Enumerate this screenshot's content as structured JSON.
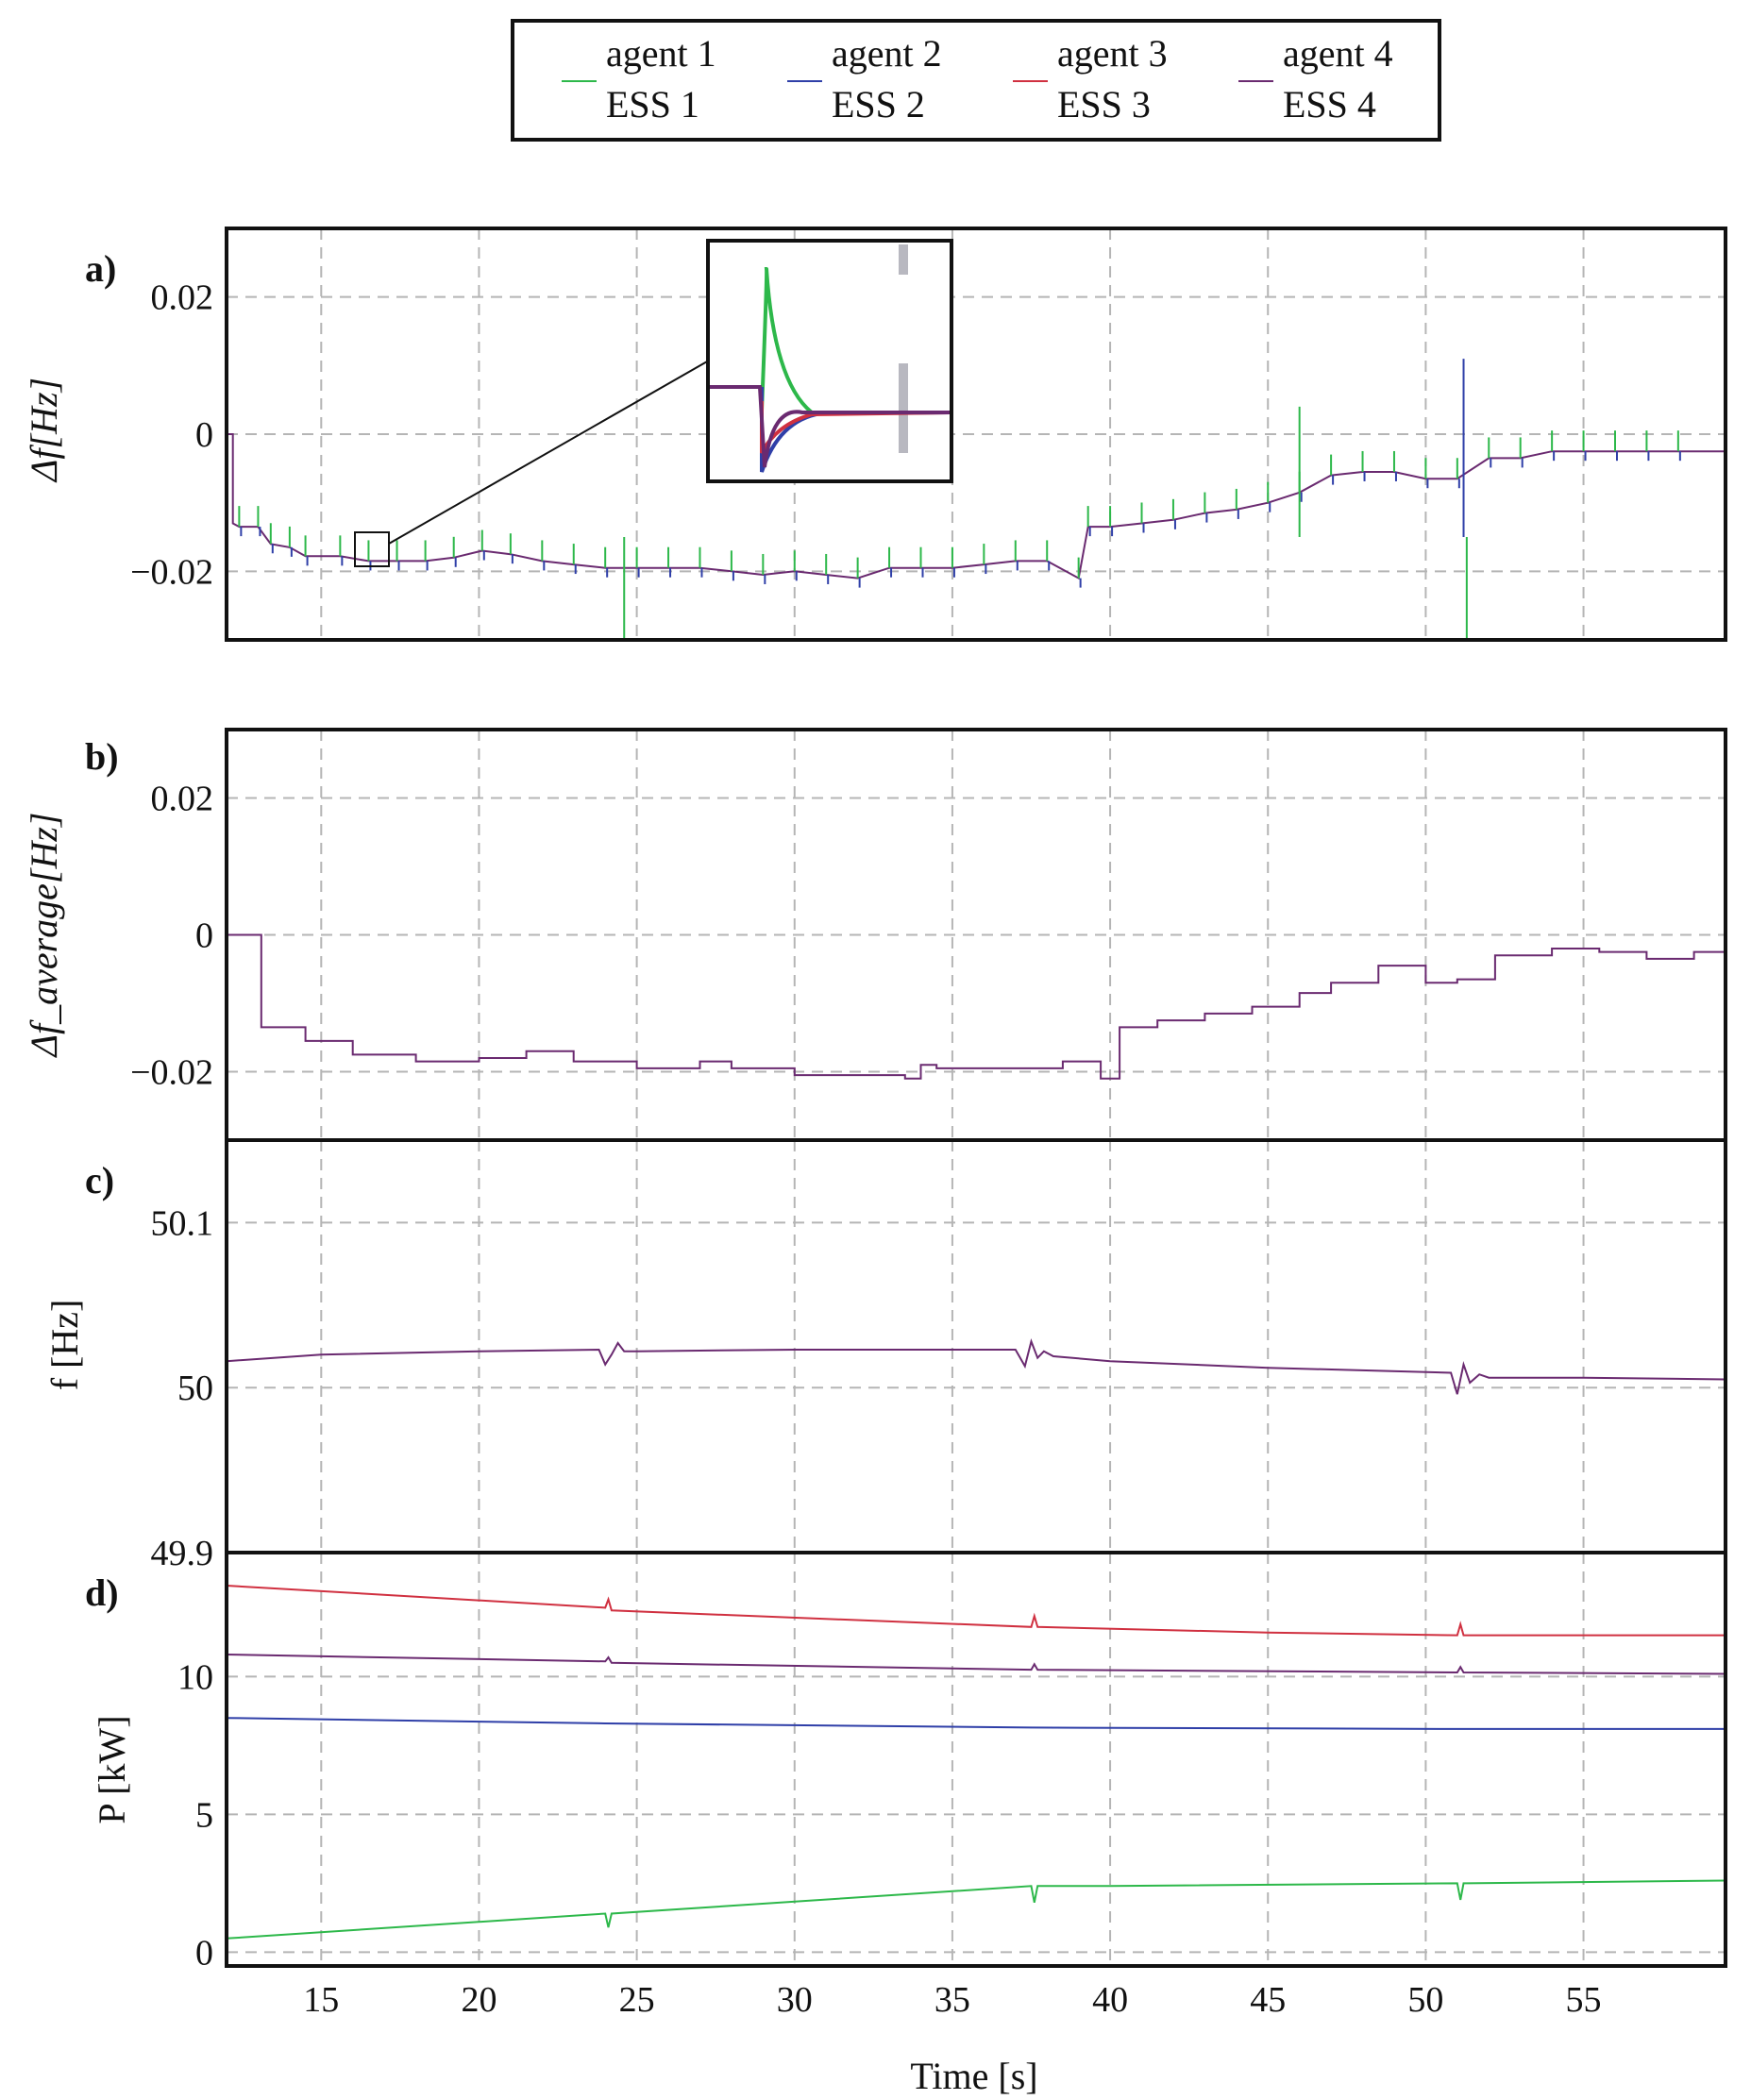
{
  "legend": {
    "entries": [
      {
        "top": "agent 1",
        "bottom": "ESS 1",
        "color": "#2db84a"
      },
      {
        "top": "agent 2",
        "bottom": "ESS 2",
        "color": "#2f3fa8"
      },
      {
        "top": "agent 3",
        "bottom": "ESS 3",
        "color": "#d03040"
      },
      {
        "top": "agent 4",
        "bottom": "ESS 4",
        "color": "#6a2a70"
      }
    ]
  },
  "colors": {
    "agent1": "#2db84a",
    "agent2": "#2f3fa8",
    "agent3": "#d03040",
    "agent4": "#6a2a70",
    "grid": "#b5b5b5",
    "axis": "#111111"
  },
  "xaxis": {
    "label": "Time [s]",
    "range": [
      12,
      59.5
    ],
    "ticks": [
      15,
      20,
      25,
      30,
      35,
      40,
      45,
      50,
      55
    ],
    "tick_labels": [
      "15",
      "20",
      "25",
      "30",
      "35",
      "40",
      "45",
      "50",
      "55"
    ]
  },
  "chart_data": [
    {
      "id": "a",
      "panel_label": "a)",
      "type": "line",
      "ylabel": "Δf[Hz]",
      "ylim": [
        -0.03,
        0.03
      ],
      "yticks": [
        -0.02,
        0,
        0.02
      ],
      "ytick_labels": [
        "−0.02",
        "0",
        "0.02"
      ],
      "series": [
        {
          "name": "agent 4",
          "x": [
            12,
            12.2,
            12.2,
            12.4,
            13.0,
            13.4,
            14.0,
            14.5,
            15.6,
            16.5,
            17.4,
            18.3,
            19.2,
            20.1,
            21.0,
            22.0,
            23.0,
            24.0,
            25.0,
            26.0,
            27.0,
            28.0,
            29.0,
            30.0,
            31.0,
            32.0,
            33.0,
            34.0,
            35.0,
            36.0,
            37.0,
            38.0,
            39.0,
            39.3,
            40.0,
            41.0,
            42.0,
            43.0,
            44.0,
            45.0,
            46.0,
            47.0,
            48.0,
            49.0,
            50.0,
            51.0,
            52.0,
            53.0,
            54.0,
            55.0,
            56.0,
            57.0,
            58.0,
            59.5
          ],
          "y": [
            0,
            0,
            -0.013,
            -0.0135,
            -0.0135,
            -0.016,
            -0.0165,
            -0.0178,
            -0.0178,
            -0.0185,
            -0.0185,
            -0.0185,
            -0.018,
            -0.017,
            -0.0175,
            -0.0185,
            -0.019,
            -0.0195,
            -0.0195,
            -0.0195,
            -0.0195,
            -0.02,
            -0.0205,
            -0.02,
            -0.0205,
            -0.021,
            -0.0195,
            -0.0195,
            -0.0195,
            -0.019,
            -0.0185,
            -0.0185,
            -0.021,
            -0.0135,
            -0.0135,
            -0.013,
            -0.0125,
            -0.0115,
            -0.011,
            -0.01,
            -0.0085,
            -0.006,
            -0.0055,
            -0.0055,
            -0.0065,
            -0.0065,
            -0.0035,
            -0.0035,
            -0.0025,
            -0.0025,
            -0.0025,
            -0.0025,
            -0.0025,
            -0.0025
          ]
        }
      ],
      "spikes": [
        {
          "x": 24.6,
          "y": -0.03,
          "series": "agent 1"
        },
        {
          "x": 51.3,
          "y": -0.03,
          "series": "agent 1"
        },
        {
          "x": 51.2,
          "y": 0.011,
          "series": "agent 2"
        },
        {
          "x": 46.0,
          "y": 0.004,
          "series": "agent 1"
        }
      ],
      "inset": true
    },
    {
      "id": "b",
      "panel_label": "b)",
      "type": "line",
      "ylabel": "Δf_average[Hz]",
      "ylim": [
        -0.03,
        0.03
      ],
      "yticks": [
        -0.02,
        0,
        0.02
      ],
      "ytick_labels": [
        "−0.02",
        "0",
        "0.02"
      ],
      "series": [
        {
          "name": "average",
          "x": [
            12,
            13.1,
            13.1,
            14.5,
            14.5,
            16.0,
            16.0,
            18.0,
            18.0,
            20.0,
            20.0,
            21.5,
            21.5,
            23.0,
            23.0,
            25.0,
            25.0,
            27.0,
            27.0,
            28.0,
            28.0,
            30.0,
            30.0,
            32.0,
            32.0,
            33.5,
            33.5,
            34.0,
            34.0,
            34.5,
            34.5,
            36.0,
            36.0,
            38.5,
            38.5,
            39.7,
            39.7,
            40.3,
            40.3,
            41.5,
            41.5,
            43.0,
            43.0,
            44.5,
            44.5,
            46.0,
            46.0,
            47.0,
            47.0,
            48.5,
            48.5,
            50.0,
            50.0,
            51.0,
            51.0,
            52.2,
            52.2,
            54.0,
            54.0,
            55.5,
            55.5,
            57.0,
            57.0,
            58.5,
            58.5,
            59.5
          ],
          "y": [
            0,
            0,
            -0.0135,
            -0.0135,
            -0.0155,
            -0.0155,
            -0.0175,
            -0.0175,
            -0.0185,
            -0.0185,
            -0.018,
            -0.018,
            -0.017,
            -0.017,
            -0.0185,
            -0.0185,
            -0.0195,
            -0.0195,
            -0.0185,
            -0.0185,
            -0.0195,
            -0.0195,
            -0.0205,
            -0.0205,
            -0.0205,
            -0.0205,
            -0.021,
            -0.021,
            -0.019,
            -0.019,
            -0.0195,
            -0.0195,
            -0.0195,
            -0.0195,
            -0.0185,
            -0.0185,
            -0.021,
            -0.021,
            -0.0135,
            -0.0135,
            -0.0125,
            -0.0125,
            -0.0115,
            -0.0115,
            -0.0105,
            -0.0105,
            -0.0085,
            -0.0085,
            -0.007,
            -0.007,
            -0.0045,
            -0.0045,
            -0.007,
            -0.007,
            -0.0065,
            -0.0065,
            -0.003,
            -0.003,
            -0.002,
            -0.002,
            -0.0025,
            -0.0025,
            -0.0035,
            -0.0035,
            -0.0025,
            -0.0025
          ]
        }
      ]
    },
    {
      "id": "c",
      "panel_label": "c)",
      "type": "line",
      "ylabel": "f [Hz]",
      "ylim": [
        49.9,
        50.15
      ],
      "yticks": [
        49.9,
        50,
        50.1
      ],
      "ytick_labels": [
        "49.9",
        "50",
        "50.1"
      ],
      "series": [
        {
          "name": "agent 4",
          "x": [
            12,
            15,
            20,
            23.8,
            24.0,
            24.2,
            24.4,
            24.6,
            25.0,
            30,
            37.0,
            37.3,
            37.5,
            37.7,
            37.9,
            38.2,
            40,
            45,
            50.8,
            51.0,
            51.2,
            51.4,
            51.7,
            52.0,
            55,
            59.5
          ],
          "y": [
            50.016,
            50.02,
            50.022,
            50.023,
            50.014,
            50.02,
            50.027,
            50.022,
            50.022,
            50.023,
            50.023,
            50.013,
            50.028,
            50.018,
            50.022,
            50.019,
            50.016,
            50.012,
            50.009,
            49.996,
            50.014,
            50.003,
            50.008,
            50.006,
            50.006,
            50.005
          ]
        }
      ]
    },
    {
      "id": "d",
      "panel_label": "d)",
      "type": "line",
      "ylabel": "P [kW]",
      "ylim": [
        -0.5,
        14.5
      ],
      "yticks": [
        0,
        5,
        10
      ],
      "ytick_labels": [
        "0",
        "5",
        "10"
      ],
      "series": [
        {
          "name": "ESS 1",
          "x": [
            12,
            24.0,
            24.1,
            24.2,
            37.5,
            37.6,
            37.7,
            37.8,
            40,
            51.0,
            51.1,
            51.2,
            51.3,
            59.5
          ],
          "y": [
            0.5,
            1.4,
            0.9,
            1.4,
            2.4,
            1.8,
            2.4,
            2.4,
            2.4,
            2.5,
            1.9,
            2.5,
            2.5,
            2.6
          ]
        },
        {
          "name": "ESS 2",
          "x": [
            12,
            24,
            37.5,
            51,
            59.5
          ],
          "y": [
            8.5,
            8.3,
            8.15,
            8.1,
            8.1
          ]
        },
        {
          "name": "ESS 3",
          "x": [
            12,
            24.0,
            24.1,
            24.2,
            37.5,
            37.6,
            37.7,
            45,
            51.0,
            51.1,
            51.2,
            59.5
          ],
          "y": [
            13.3,
            12.5,
            12.8,
            12.4,
            11.8,
            12.2,
            11.8,
            11.6,
            11.5,
            11.9,
            11.5,
            11.5
          ]
        },
        {
          "name": "ESS 4",
          "x": [
            12,
            24.0,
            24.1,
            24.2,
            37.5,
            37.6,
            37.7,
            51.0,
            51.1,
            51.2,
            59.5
          ],
          "y": [
            10.8,
            10.55,
            10.7,
            10.5,
            10.25,
            10.45,
            10.25,
            10.15,
            10.35,
            10.15,
            10.1
          ]
        }
      ]
    }
  ]
}
